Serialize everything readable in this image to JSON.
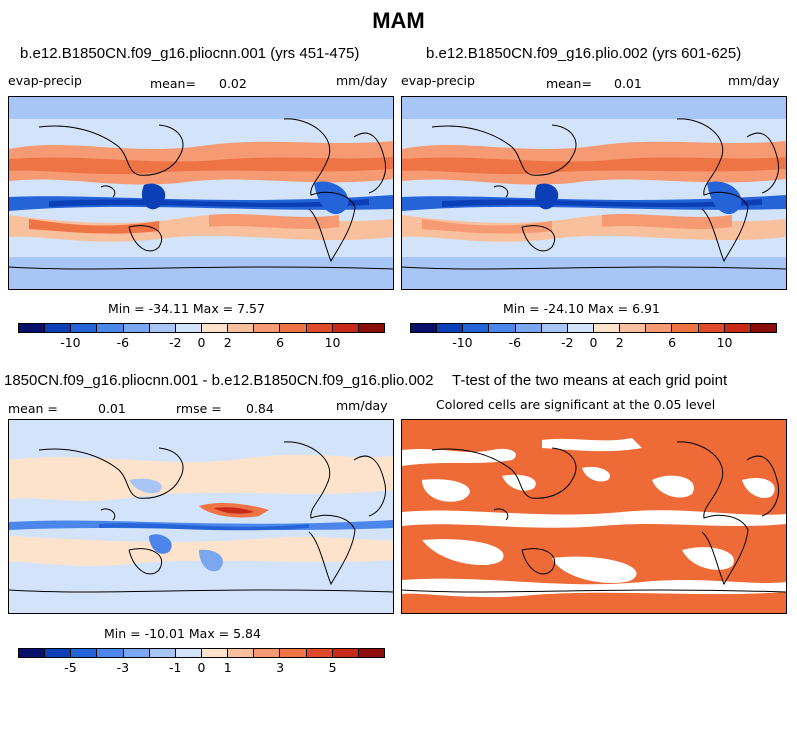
{
  "figure": {
    "title": "MAM"
  },
  "panels": [
    {
      "title": "b.e12.B1850CN.f09_g16.pliocnn.001 (yrs 451-475)",
      "variable": "evap-precip",
      "mean_label": "mean=",
      "mean_value": "0.02",
      "units": "mm/day",
      "minmax": "Min = -34.11 Max =    7.57"
    },
    {
      "title": "b.e12.B1850CN.f09_g16.plio.002 (yrs 601-625)",
      "variable": "evap-precip",
      "mean_label": "mean=",
      "mean_value": "0.01",
      "units": "mm/day",
      "minmax": "Min = -24.10 Max =    6.91"
    },
    {
      "title": "1850CN.f09_g16.pliocnn.001 - b.e12.B1850CN.f09_g16.plio.002",
      "mean_label": "mean =",
      "mean_value": "0.01",
      "rmse_label": "rmse =",
      "rmse_value": "0.84",
      "units": "mm/day",
      "minmax": "Min = -10.01 Max =    5.84"
    },
    {
      "title": "T-test of the two means at each grid point",
      "subtitle": "Colored cells are significant at the 0.05 level"
    }
  ],
  "colorbar_main": {
    "colors": [
      "#08106b",
      "#0b3fb8",
      "#2563d9",
      "#4c86ea",
      "#7aa7f0",
      "#a8c6f5",
      "#d3e4fa",
      "#fde3cc",
      "#f9c09e",
      "#f59a72",
      "#ee7446",
      "#e0492a",
      "#c72a18",
      "#8c0d0a"
    ],
    "tick_labels": [
      "-10",
      "-6",
      "-2",
      "0",
      "2",
      "6",
      "10"
    ]
  },
  "colorbar_diff": {
    "colors": [
      "#08106b",
      "#0b3fb8",
      "#2563d9",
      "#4c86ea",
      "#7aa7f0",
      "#a8c6f5",
      "#d3e4fa",
      "#fde3cc",
      "#f9c09e",
      "#f59a72",
      "#ee7446",
      "#e0492a",
      "#c72a18",
      "#8c0d0a"
    ],
    "tick_labels": [
      "-5",
      "-3",
      "-1",
      "0",
      "1",
      "3",
      "5"
    ]
  },
  "significance_color": "#ee6a36"
}
